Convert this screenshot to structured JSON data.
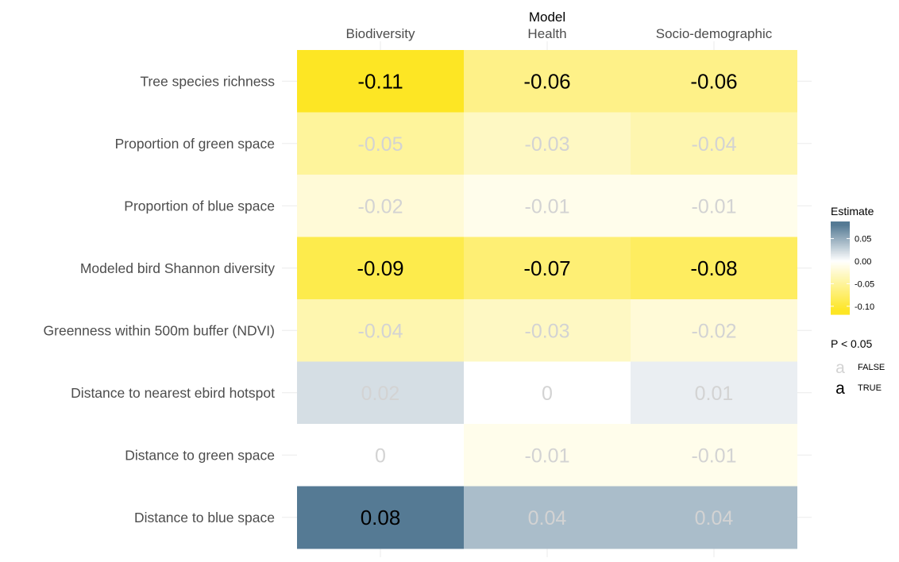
{
  "chart_data": {
    "type": "heatmap",
    "x_axis_title": "Model",
    "columns": [
      "Biodiversity",
      "Health",
      "Socio-demographic"
    ],
    "rows": [
      "Tree species richness",
      "Proportion of green space",
      "Proportion of blue space",
      "Modeled bird Shannon diversity",
      "Greenness within 500m buffer (NDVI)",
      "Distance to nearest ebird hotspot",
      "Distance to green space",
      "Distance to blue space"
    ],
    "labels": [
      [
        "-0.11",
        "-0.06",
        "-0.06"
      ],
      [
        "-0.05",
        "-0.03",
        "-0.04"
      ],
      [
        "-0.02",
        "-0.01",
        "-0.01"
      ],
      [
        "-0.09",
        "-0.07",
        "-0.08"
      ],
      [
        "-0.04",
        "-0.03",
        "-0.02"
      ],
      [
        "0.02",
        "0",
        "0.01"
      ],
      [
        "0",
        "-0.01",
        "-0.01"
      ],
      [
        "0.08",
        "0.04",
        "0.04"
      ]
    ],
    "values": [
      [
        -0.11,
        -0.06,
        -0.06
      ],
      [
        -0.05,
        -0.03,
        -0.04
      ],
      [
        -0.02,
        -0.01,
        -0.01
      ],
      [
        -0.09,
        -0.07,
        -0.08
      ],
      [
        -0.04,
        -0.03,
        -0.02
      ],
      [
        0.02,
        0.0,
        0.01
      ],
      [
        0.0,
        -0.01,
        -0.01
      ],
      [
        0.08,
        0.04,
        0.04
      ]
    ],
    "significant": [
      [
        true,
        true,
        true
      ],
      [
        false,
        false,
        false
      ],
      [
        false,
        false,
        false
      ],
      [
        true,
        true,
        true
      ],
      [
        false,
        false,
        false
      ],
      [
        false,
        false,
        false
      ],
      [
        false,
        false,
        false
      ],
      [
        true,
        false,
        false
      ]
    ],
    "color_scale": {
      "title": "Estimate",
      "min": -0.11,
      "max": 0.08,
      "ticks": [
        "0.05",
        "0.00",
        "-0.05",
        "-0.10"
      ],
      "tick_values": [
        0.05,
        0.0,
        -0.05,
        -0.1
      ],
      "low_color": "#fde624",
      "mid_color": "#ffffff",
      "high_color": "#557a94"
    },
    "size_legend": {
      "title": "P < 0.05",
      "entries": [
        {
          "symbol": "a",
          "label": "FALSE",
          "color": "#d3d3d3"
        },
        {
          "symbol": "a",
          "label": "TRUE",
          "color": "#000000"
        }
      ]
    },
    "legend_position": "right",
    "grid": true
  }
}
